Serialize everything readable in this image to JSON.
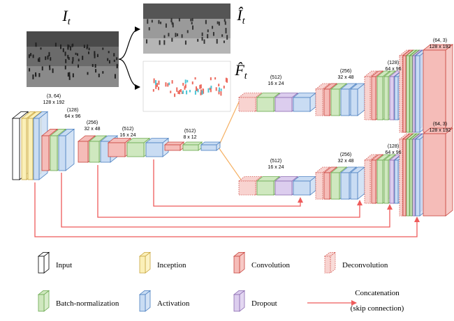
{
  "math_labels": [
    {
      "base": "I",
      "sub": "t"
    },
    {
      "base": "Î",
      "sub": "t"
    },
    {
      "base": "F̂",
      "sub": "t"
    }
  ],
  "encoder": [
    {
      "channels": "(3, 64)",
      "size": "128 x 192"
    },
    {
      "channels": "(128)",
      "size": "64 x 96"
    },
    {
      "channels": "(256)",
      "size": "32 x 48"
    },
    {
      "channels": "(512)",
      "size": "16 x 24"
    },
    {
      "channels": "(512)",
      "size": "8 x 12"
    }
  ],
  "decoder_top": [
    {
      "channels": "(512)",
      "size": "16 x 24"
    },
    {
      "channels": "(256)",
      "size": "32 x 48"
    },
    {
      "channels": "(128)",
      "size": "64 x 96"
    },
    {
      "channels": "(64, 3)",
      "size": "128 x 192"
    }
  ],
  "decoder_bottom": [
    {
      "channels": "(512)",
      "size": "16 x 24"
    },
    {
      "channels": "(256)",
      "size": "32 x 48"
    },
    {
      "channels": "(128)",
      "size": "64 x 96"
    },
    {
      "channels": "(64, 3)",
      "size": "128 x 192"
    }
  ],
  "legend": [
    "Input",
    "Inception",
    "Convolution",
    "Deconvolution",
    "Batch-normalization",
    "Activation",
    "Dropout"
  ],
  "concatenation": {
    "title": "Concatenation",
    "note": "(skip connection)"
  }
}
